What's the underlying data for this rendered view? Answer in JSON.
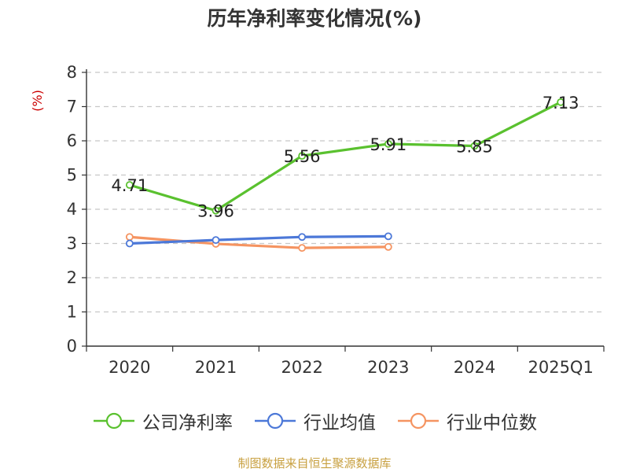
{
  "page_title": "历年净利率变化情况(%)",
  "source_note": "制图数据来自恒生聚源数据库",
  "chart_data": {
    "type": "line",
    "title": "历年净利率变化情况(%)",
    "ylabel": "(%)",
    "ylabel_color": "#cc0000",
    "categories": [
      "2020",
      "2021",
      "2022",
      "2023",
      "2024",
      "2025Q1"
    ],
    "ylim": [
      0,
      8
    ],
    "yticks": [
      0,
      1,
      2,
      3,
      4,
      5,
      6,
      7,
      8
    ],
    "grid": true,
    "legend_position": "bottom",
    "series": [
      {
        "name": "公司净利率",
        "color": "#5ac12f",
        "values": [
          4.71,
          3.96,
          5.56,
          5.91,
          5.85,
          7.13
        ],
        "labels": [
          "4.71",
          "3.96",
          "5.56",
          "5.91",
          "5.85",
          "7.13"
        ],
        "show_labels": true
      },
      {
        "name": "行业均值",
        "color": "#4c78d8",
        "values": [
          3.0,
          3.1,
          3.19,
          3.21,
          null,
          null
        ],
        "show_labels": false
      },
      {
        "name": "行业中位数",
        "color": "#f59461",
        "values": [
          3.19,
          2.99,
          2.87,
          2.9,
          null,
          null
        ],
        "show_labels": false
      }
    ]
  }
}
